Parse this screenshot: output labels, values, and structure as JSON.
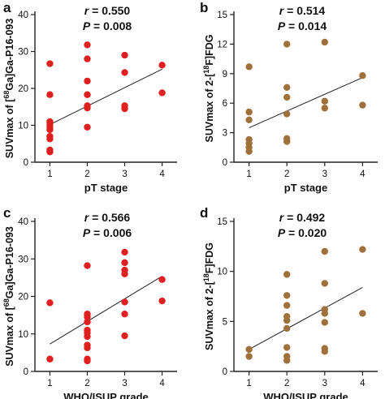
{
  "figure": {
    "colors": {
      "red": "#e02020",
      "brown": "#a0703a",
      "axis": "#222222",
      "fit": "#222222"
    }
  },
  "chart_data": [
    {
      "panel": "a",
      "type": "scatter",
      "stat_r": "0.550",
      "stat_p": "0.008",
      "xlabel": "pT stage",
      "ylabel_pre": "SUVmax of [",
      "ylabel_sup": "68",
      "ylabel_post": "Ga]Ga-P16-093",
      "xlim": [
        0.6,
        4.4
      ],
      "ylim": [
        0,
        40
      ],
      "xticks": [
        1,
        2,
        3,
        4
      ],
      "yticks": [
        0,
        10,
        20,
        30,
        40
      ],
      "color": "#e02020",
      "points": [
        {
          "x": 1,
          "y": 26.7
        },
        {
          "x": 1,
          "y": 18.3
        },
        {
          "x": 1,
          "y": 11.0
        },
        {
          "x": 1,
          "y": 10.3
        },
        {
          "x": 1,
          "y": 9.5
        },
        {
          "x": 1,
          "y": 8.8
        },
        {
          "x": 1,
          "y": 7.0
        },
        {
          "x": 1,
          "y": 6.3
        },
        {
          "x": 1,
          "y": 3.3
        },
        {
          "x": 1,
          "y": 2.8
        },
        {
          "x": 2,
          "y": 31.8
        },
        {
          "x": 2,
          "y": 28.0
        },
        {
          "x": 2,
          "y": 22.0
        },
        {
          "x": 2,
          "y": 18.3
        },
        {
          "x": 2,
          "y": 15.3
        },
        {
          "x": 2,
          "y": 14.7
        },
        {
          "x": 2,
          "y": 9.5
        },
        {
          "x": 3,
          "y": 29.0
        },
        {
          "x": 3,
          "y": 24.3
        },
        {
          "x": 3,
          "y": 15.3
        },
        {
          "x": 3,
          "y": 14.5
        },
        {
          "x": 4,
          "y": 26.3
        },
        {
          "x": 4,
          "y": 18.8
        }
      ],
      "fit": [
        [
          1,
          10.2
        ],
        [
          4,
          25.2
        ]
      ]
    },
    {
      "panel": "b",
      "type": "scatter",
      "stat_r": "0.514",
      "stat_p": "0.014",
      "xlabel": "pT stage",
      "ylabel_pre": "SUVmax of 2-[",
      "ylabel_sup": "18",
      "ylabel_post": "F]FDG",
      "xlim": [
        0.6,
        4.4
      ],
      "ylim": [
        0,
        15
      ],
      "xticks": [
        1,
        2,
        3,
        4
      ],
      "yticks": [
        0,
        3,
        6,
        9,
        12,
        15
      ],
      "color": "#a0703a",
      "points": [
        {
          "x": 1,
          "y": 9.7
        },
        {
          "x": 1,
          "y": 5.1
        },
        {
          "x": 1,
          "y": 4.3
        },
        {
          "x": 1,
          "y": 2.3
        },
        {
          "x": 1,
          "y": 1.9
        },
        {
          "x": 1,
          "y": 1.5
        },
        {
          "x": 1,
          "y": 1.1
        },
        {
          "x": 2,
          "y": 12.0
        },
        {
          "x": 2,
          "y": 7.6
        },
        {
          "x": 2,
          "y": 6.6
        },
        {
          "x": 2,
          "y": 4.9
        },
        {
          "x": 2,
          "y": 2.4
        },
        {
          "x": 2,
          "y": 2.1
        },
        {
          "x": 3,
          "y": 12.2
        },
        {
          "x": 3,
          "y": 6.2
        },
        {
          "x": 3,
          "y": 5.5
        },
        {
          "x": 4,
          "y": 8.8
        },
        {
          "x": 4,
          "y": 5.8
        }
      ],
      "fit": [
        [
          1,
          3.5
        ],
        [
          4,
          8.6
        ]
      ]
    },
    {
      "panel": "c",
      "type": "scatter",
      "stat_r": "0.566",
      "stat_p": "0.006",
      "xlabel": "WHO/ISUP grade",
      "ylabel_pre": "SUVmax of [",
      "ylabel_sup": "68",
      "ylabel_post": "Ga]Ga-P16-093",
      "xlim": [
        0.6,
        4.4
      ],
      "ylim": [
        0,
        40
      ],
      "xticks": [
        1,
        2,
        3,
        4
      ],
      "yticks": [
        0,
        10,
        20,
        30,
        40
      ],
      "color": "#e02020",
      "points": [
        {
          "x": 1,
          "y": 18.3
        },
        {
          "x": 1,
          "y": 3.3
        },
        {
          "x": 2,
          "y": 28.2
        },
        {
          "x": 2,
          "y": 15.3
        },
        {
          "x": 2,
          "y": 14.5
        },
        {
          "x": 2,
          "y": 13.2
        },
        {
          "x": 2,
          "y": 11.0
        },
        {
          "x": 2,
          "y": 10.3
        },
        {
          "x": 2,
          "y": 9.3
        },
        {
          "x": 2,
          "y": 7.0
        },
        {
          "x": 2,
          "y": 6.3
        },
        {
          "x": 2,
          "y": 3.3
        },
        {
          "x": 2,
          "y": 2.8
        },
        {
          "x": 3,
          "y": 31.8
        },
        {
          "x": 3,
          "y": 29.0
        },
        {
          "x": 3,
          "y": 27.0
        },
        {
          "x": 3,
          "y": 26.0
        },
        {
          "x": 3,
          "y": 18.5
        },
        {
          "x": 3,
          "y": 15.3
        },
        {
          "x": 3,
          "y": 9.5
        },
        {
          "x": 4,
          "y": 24.5
        },
        {
          "x": 4,
          "y": 18.8
        }
      ],
      "fit": [
        [
          1,
          7.3
        ],
        [
          4,
          25.4
        ]
      ]
    },
    {
      "panel": "d",
      "type": "scatter",
      "stat_r": "0.492",
      "stat_p": "0.020",
      "xlabel": "WHO/ISUP grade",
      "ylabel_pre": "SUVmax of 2-[",
      "ylabel_sup": "18",
      "ylabel_post": "F]FDG",
      "xlim": [
        0.6,
        4.4
      ],
      "ylim": [
        0,
        15
      ],
      "xticks": [
        1,
        2,
        3,
        4
      ],
      "yticks": [
        0,
        5,
        10,
        15
      ],
      "color": "#a0703a",
      "points": [
        {
          "x": 1,
          "y": 2.2
        },
        {
          "x": 1,
          "y": 1.5
        },
        {
          "x": 2,
          "y": 9.7
        },
        {
          "x": 2,
          "y": 7.6
        },
        {
          "x": 2,
          "y": 6.6
        },
        {
          "x": 2,
          "y": 5.5
        },
        {
          "x": 2,
          "y": 5.1
        },
        {
          "x": 2,
          "y": 4.3
        },
        {
          "x": 2,
          "y": 2.4
        },
        {
          "x": 2,
          "y": 1.5
        },
        {
          "x": 2,
          "y": 1.1
        },
        {
          "x": 3,
          "y": 12.0
        },
        {
          "x": 3,
          "y": 8.8
        },
        {
          "x": 3,
          "y": 6.2
        },
        {
          "x": 3,
          "y": 5.8
        },
        {
          "x": 3,
          "y": 4.9
        },
        {
          "x": 3,
          "y": 2.3
        },
        {
          "x": 3,
          "y": 2.0
        },
        {
          "x": 4,
          "y": 12.2
        },
        {
          "x": 4,
          "y": 5.8
        }
      ],
      "fit": [
        [
          1,
          2.2
        ],
        [
          4,
          8.4
        ]
      ]
    }
  ]
}
